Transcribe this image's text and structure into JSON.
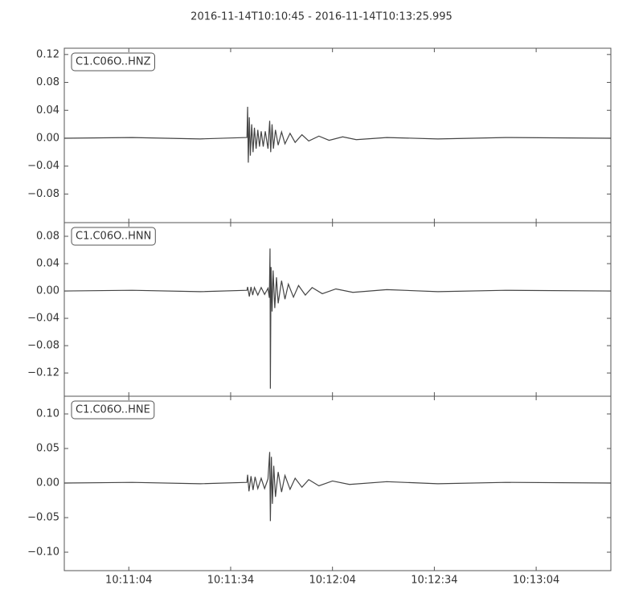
{
  "title": "2016-11-14T10:10:45  -  2016-11-14T10:13:25.995",
  "chart_data": [
    {
      "type": "line",
      "grid": false,
      "x": [
        0,
        20,
        40,
        53.8,
        54,
        54.2,
        54.5,
        54.8,
        55.2,
        55.6,
        56,
        56.5,
        57,
        57.5,
        58,
        58.6,
        59.2,
        60,
        60.5,
        60.8,
        61.2,
        61.6,
        62.2,
        63,
        64,
        65,
        66.5,
        68,
        70,
        72,
        75,
        78,
        82,
        86,
        95,
        110,
        130,
        161
      ],
      "series": [
        {
          "name": "C1.C06O..HNZ",
          "color": "#444444",
          "values": [
            0,
            0.001,
            -0.001,
            0.001,
            0.045,
            -0.035,
            0.03,
            -0.025,
            0.02,
            -0.02,
            0.015,
            -0.015,
            0.012,
            -0.012,
            0.01,
            -0.012,
            0.01,
            -0.015,
            0.025,
            -0.02,
            0.02,
            -0.015,
            0.012,
            -0.01,
            0.009,
            -0.008,
            0.007,
            -0.006,
            0.005,
            -0.004,
            0.003,
            -0.003,
            0.002,
            -0.002,
            0.001,
            -0.001,
            0.001,
            0
          ]
        }
      ],
      "xlim": [
        0,
        160.995
      ],
      "xticks": [
        19,
        49,
        79,
        109,
        139
      ],
      "ylim": [
        -0.121,
        0.129
      ],
      "yticks": [
        {
          "value": -0.08,
          "label": "−0.08"
        },
        {
          "value": -0.04,
          "label": "−0.04"
        },
        {
          "value": 0,
          "label": "0.00"
        },
        0.04,
        0.08,
        0.12
      ]
    },
    {
      "type": "line",
      "grid": false,
      "x": [
        0,
        20,
        40,
        53.8,
        54,
        54.5,
        55,
        55.5,
        56,
        57,
        58,
        59,
        60,
        60.4,
        60.6,
        60.7,
        60.9,
        61.2,
        61.5,
        62,
        62.5,
        63,
        64,
        65,
        66,
        67.5,
        69,
        71,
        73,
        76,
        80,
        85,
        95,
        110,
        130,
        161
      ],
      "series": [
        {
          "name": "C1.C06O..HNN",
          "color": "#444444",
          "values": [
            0,
            0.001,
            -0.001,
            0.001,
            0.006,
            -0.008,
            0.006,
            -0.006,
            0.005,
            -0.006,
            0.005,
            -0.005,
            0.004,
            -0.01,
            0.062,
            -0.143,
            0.035,
            -0.03,
            0.03,
            -0.025,
            0.02,
            -0.018,
            0.015,
            -0.012,
            0.01,
            -0.009,
            0.008,
            -0.006,
            0.005,
            -0.004,
            0.003,
            -0.002,
            0.002,
            -0.001,
            0.001,
            0
          ]
        }
      ],
      "xlim": [
        0,
        160.995
      ],
      "xticks": [
        19,
        49,
        79,
        109,
        139
      ],
      "ylim": [
        -0.154,
        0.1
      ],
      "yticks": [
        {
          "value": -0.12,
          "label": "−0.12"
        },
        {
          "value": -0.08,
          "label": "−0.08"
        },
        {
          "value": -0.04,
          "label": "−0.04"
        },
        {
          "value": 0,
          "label": "0.00"
        },
        0.04,
        0.08
      ]
    },
    {
      "type": "line",
      "grid": false,
      "x": [
        0,
        20,
        40,
        53.8,
        54,
        54.4,
        55,
        55.6,
        56.2,
        57,
        58,
        59,
        60,
        60.5,
        60.7,
        61,
        61.3,
        61.7,
        62.2,
        63,
        64,
        65,
        66.5,
        68,
        70,
        72,
        75,
        79,
        84,
        95,
        110,
        130,
        161
      ],
      "series": [
        {
          "name": "C1.C06O..HNE",
          "color": "#444444",
          "values": [
            0,
            0.001,
            -0.001,
            0.001,
            0.012,
            -0.012,
            0.01,
            -0.01,
            0.009,
            -0.008,
            0.007,
            -0.008,
            0.006,
            0.045,
            -0.055,
            0.038,
            -0.03,
            0.025,
            -0.02,
            0.016,
            -0.013,
            0.011,
            -0.009,
            0.007,
            -0.006,
            0.005,
            -0.004,
            0.003,
            -0.002,
            0.002,
            -0.001,
            0.001,
            0
          ]
        }
      ],
      "xlim": [
        0,
        160.995
      ],
      "xticks": [
        {
          "value": 19,
          "label": "10:11:04"
        },
        {
          "value": 49,
          "label": "10:11:34"
        },
        {
          "value": 79,
          "label": "10:12:04"
        },
        {
          "value": 109,
          "label": "10:12:34"
        },
        {
          "value": 139,
          "label": "10:13:04"
        }
      ],
      "ylim": [
        -0.1267,
        0.1256
      ],
      "yticks": [
        {
          "value": -0.1,
          "label": "−0.10"
        },
        {
          "value": -0.05,
          "label": "−0.05"
        },
        {
          "value": 0,
          "label": "0.00"
        },
        0.05,
        {
          "value": 0.1,
          "label": "0.10"
        }
      ]
    }
  ]
}
